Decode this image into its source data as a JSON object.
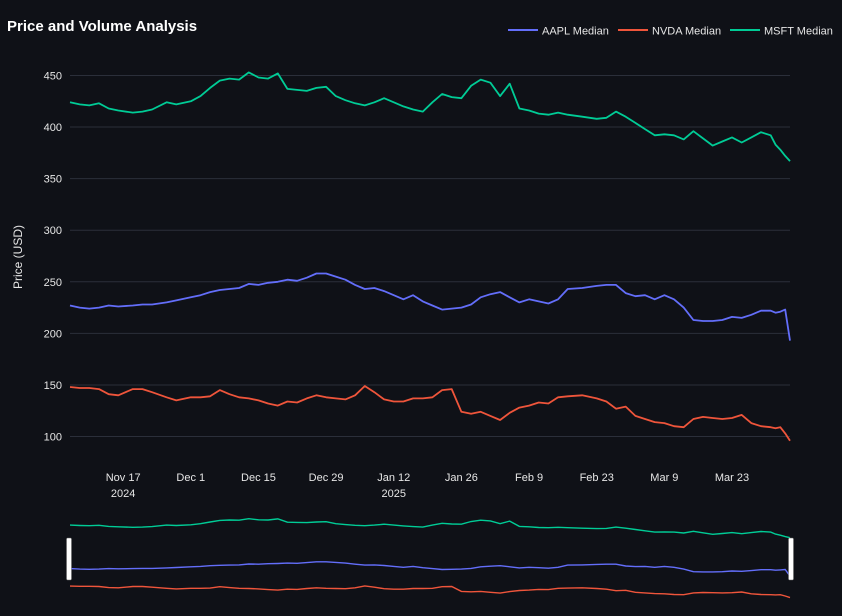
{
  "chart_data": {
    "type": "line",
    "title": "Price and Volume Analysis",
    "ylabel": "Price (USD)",
    "xlabel": "",
    "ylim": [
      85,
      465
    ],
    "yticks": [
      100,
      150,
      200,
      250,
      300,
      350,
      400,
      450
    ],
    "x_range": [
      "2024-11-06",
      "2025-04-04"
    ],
    "xticks": [
      {
        "date": "2024-11-17",
        "label": "Nov 17",
        "sublabel": "2024"
      },
      {
        "date": "2024-12-01",
        "label": "Dec 1",
        "sublabel": ""
      },
      {
        "date": "2024-12-15",
        "label": "Dec 15",
        "sublabel": ""
      },
      {
        "date": "2024-12-29",
        "label": "Dec 29",
        "sublabel": ""
      },
      {
        "date": "2025-01-12",
        "label": "Jan 12",
        "sublabel": "2025"
      },
      {
        "date": "2025-01-26",
        "label": "Jan 26",
        "sublabel": ""
      },
      {
        "date": "2025-02-09",
        "label": "Feb 9",
        "sublabel": ""
      },
      {
        "date": "2025-02-23",
        "label": "Feb 23",
        "sublabel": ""
      },
      {
        "date": "2025-03-09",
        "label": "Mar 9",
        "sublabel": ""
      },
      {
        "date": "2025-03-23",
        "label": "Mar 23",
        "sublabel": ""
      }
    ],
    "grid": true,
    "legend_position": "top-right",
    "range_slider": true,
    "series": [
      {
        "name": "AAPL Median",
        "color": "#636efa",
        "points": [
          [
            "2024-11-06",
            227
          ],
          [
            "2024-11-08",
            225
          ],
          [
            "2024-11-10",
            224
          ],
          [
            "2024-11-12",
            225
          ],
          [
            "2024-11-14",
            227
          ],
          [
            "2024-11-16",
            226
          ],
          [
            "2024-11-19",
            227
          ],
          [
            "2024-11-21",
            228
          ],
          [
            "2024-11-23",
            228
          ],
          [
            "2024-11-26",
            230
          ],
          [
            "2024-11-28",
            232
          ],
          [
            "2024-12-01",
            235
          ],
          [
            "2024-12-03",
            237
          ],
          [
            "2024-12-05",
            240
          ],
          [
            "2024-12-07",
            242
          ],
          [
            "2024-12-09",
            243
          ],
          [
            "2024-12-11",
            244
          ],
          [
            "2024-12-13",
            248
          ],
          [
            "2024-12-15",
            247
          ],
          [
            "2024-12-17",
            249
          ],
          [
            "2024-12-19",
            250
          ],
          [
            "2024-12-21",
            252
          ],
          [
            "2024-12-23",
            251
          ],
          [
            "2024-12-25",
            254
          ],
          [
            "2024-12-27",
            258
          ],
          [
            "2024-12-29",
            258
          ],
          [
            "2024-12-31",
            255
          ],
          [
            "2025-01-02",
            252
          ],
          [
            "2025-01-04",
            247
          ],
          [
            "2025-01-06",
            243
          ],
          [
            "2025-01-08",
            244
          ],
          [
            "2025-01-10",
            241
          ],
          [
            "2025-01-12",
            237
          ],
          [
            "2025-01-14",
            233
          ],
          [
            "2025-01-16",
            237
          ],
          [
            "2025-01-18",
            231
          ],
          [
            "2025-01-20",
            227
          ],
          [
            "2025-01-22",
            223
          ],
          [
            "2025-01-24",
            224
          ],
          [
            "2025-01-26",
            225
          ],
          [
            "2025-01-28",
            228
          ],
          [
            "2025-01-30",
            235
          ],
          [
            "2025-02-01",
            238
          ],
          [
            "2025-02-03",
            240
          ],
          [
            "2025-02-05",
            235
          ],
          [
            "2025-02-07",
            230
          ],
          [
            "2025-02-09",
            233
          ],
          [
            "2025-02-11",
            231
          ],
          [
            "2025-02-13",
            229
          ],
          [
            "2025-02-15",
            233
          ],
          [
            "2025-02-17",
            243
          ],
          [
            "2025-02-20",
            244
          ],
          [
            "2025-02-23",
            246
          ],
          [
            "2025-02-25",
            247
          ],
          [
            "2025-02-27",
            247
          ],
          [
            "2025-03-01",
            239
          ],
          [
            "2025-03-03",
            236
          ],
          [
            "2025-03-05",
            237
          ],
          [
            "2025-03-07",
            233
          ],
          [
            "2025-03-09",
            237
          ],
          [
            "2025-03-11",
            233
          ],
          [
            "2025-03-13",
            225
          ],
          [
            "2025-03-15",
            213
          ],
          [
            "2025-03-17",
            212
          ],
          [
            "2025-03-19",
            212
          ],
          [
            "2025-03-21",
            213
          ],
          [
            "2025-03-23",
            216
          ],
          [
            "2025-03-25",
            215
          ],
          [
            "2025-03-27",
            218
          ],
          [
            "2025-03-29",
            222
          ],
          [
            "2025-03-31",
            222
          ],
          [
            "2025-04-01",
            220
          ],
          [
            "2025-04-02",
            221
          ],
          [
            "2025-04-03",
            223
          ],
          [
            "2025-04-04",
            193
          ]
        ]
      },
      {
        "name": "NVDA Median",
        "color": "#ef553b",
        "points": [
          [
            "2024-11-06",
            148
          ],
          [
            "2024-11-08",
            147
          ],
          [
            "2024-11-10",
            147
          ],
          [
            "2024-11-12",
            146
          ],
          [
            "2024-11-14",
            141
          ],
          [
            "2024-11-16",
            140
          ],
          [
            "2024-11-19",
            146
          ],
          [
            "2024-11-21",
            146
          ],
          [
            "2024-11-23",
            143
          ],
          [
            "2024-11-26",
            138
          ],
          [
            "2024-11-28",
            135
          ],
          [
            "2024-12-01",
            138
          ],
          [
            "2024-12-03",
            138
          ],
          [
            "2024-12-05",
            139
          ],
          [
            "2024-12-07",
            145
          ],
          [
            "2024-12-09",
            141
          ],
          [
            "2024-12-11",
            138
          ],
          [
            "2024-12-13",
            137
          ],
          [
            "2024-12-15",
            135
          ],
          [
            "2024-12-17",
            132
          ],
          [
            "2024-12-19",
            130
          ],
          [
            "2024-12-21",
            134
          ],
          [
            "2024-12-23",
            133
          ],
          [
            "2024-12-25",
            137
          ],
          [
            "2024-12-27",
            140
          ],
          [
            "2024-12-29",
            138
          ],
          [
            "2024-12-31",
            137
          ],
          [
            "2025-01-02",
            136
          ],
          [
            "2025-01-04",
            140
          ],
          [
            "2025-01-06",
            149
          ],
          [
            "2025-01-08",
            143
          ],
          [
            "2025-01-10",
            136
          ],
          [
            "2025-01-12",
            134
          ],
          [
            "2025-01-14",
            134
          ],
          [
            "2025-01-16",
            137
          ],
          [
            "2025-01-18",
            137
          ],
          [
            "2025-01-20",
            138
          ],
          [
            "2025-01-22",
            145
          ],
          [
            "2025-01-24",
            146
          ],
          [
            "2025-01-26",
            124
          ],
          [
            "2025-01-28",
            122
          ],
          [
            "2025-01-30",
            124
          ],
          [
            "2025-02-01",
            120
          ],
          [
            "2025-02-03",
            116
          ],
          [
            "2025-02-05",
            123
          ],
          [
            "2025-02-07",
            128
          ],
          [
            "2025-02-09",
            130
          ],
          [
            "2025-02-11",
            133
          ],
          [
            "2025-02-13",
            132
          ],
          [
            "2025-02-15",
            138
          ],
          [
            "2025-02-17",
            139
          ],
          [
            "2025-02-20",
            140
          ],
          [
            "2025-02-23",
            137
          ],
          [
            "2025-02-25",
            134
          ],
          [
            "2025-02-27",
            127
          ],
          [
            "2025-03-01",
            129
          ],
          [
            "2025-03-03",
            120
          ],
          [
            "2025-03-05",
            117
          ],
          [
            "2025-03-07",
            114
          ],
          [
            "2025-03-09",
            113
          ],
          [
            "2025-03-11",
            110
          ],
          [
            "2025-03-13",
            109
          ],
          [
            "2025-03-15",
            117
          ],
          [
            "2025-03-17",
            119
          ],
          [
            "2025-03-19",
            118
          ],
          [
            "2025-03-21",
            117
          ],
          [
            "2025-03-23",
            118
          ],
          [
            "2025-03-25",
            121
          ],
          [
            "2025-03-27",
            113
          ],
          [
            "2025-03-29",
            110
          ],
          [
            "2025-03-31",
            109
          ],
          [
            "2025-04-01",
            108
          ],
          [
            "2025-04-02",
            109
          ],
          [
            "2025-04-03",
            103
          ],
          [
            "2025-04-04",
            96
          ]
        ]
      },
      {
        "name": "MSFT Median",
        "color": "#00cc96",
        "points": [
          [
            "2024-11-06",
            424
          ],
          [
            "2024-11-08",
            422
          ],
          [
            "2024-11-10",
            421
          ],
          [
            "2024-11-12",
            423
          ],
          [
            "2024-11-14",
            418
          ],
          [
            "2024-11-16",
            416
          ],
          [
            "2024-11-19",
            414
          ],
          [
            "2024-11-21",
            415
          ],
          [
            "2024-11-23",
            417
          ],
          [
            "2024-11-26",
            424
          ],
          [
            "2024-11-28",
            422
          ],
          [
            "2024-12-01",
            425
          ],
          [
            "2024-12-03",
            430
          ],
          [
            "2024-12-05",
            438
          ],
          [
            "2024-12-07",
            445
          ],
          [
            "2024-12-09",
            447
          ],
          [
            "2024-12-11",
            446
          ],
          [
            "2024-12-13",
            453
          ],
          [
            "2024-12-15",
            448
          ],
          [
            "2024-12-17",
            447
          ],
          [
            "2024-12-19",
            452
          ],
          [
            "2024-12-21",
            437
          ],
          [
            "2024-12-23",
            436
          ],
          [
            "2024-12-25",
            435
          ],
          [
            "2024-12-27",
            438
          ],
          [
            "2024-12-29",
            439
          ],
          [
            "2024-12-31",
            430
          ],
          [
            "2025-01-02",
            426
          ],
          [
            "2025-01-04",
            423
          ],
          [
            "2025-01-06",
            421
          ],
          [
            "2025-01-08",
            424
          ],
          [
            "2025-01-10",
            428
          ],
          [
            "2025-01-12",
            424
          ],
          [
            "2025-01-14",
            420
          ],
          [
            "2025-01-16",
            417
          ],
          [
            "2025-01-18",
            415
          ],
          [
            "2025-01-20",
            424
          ],
          [
            "2025-01-22",
            432
          ],
          [
            "2025-01-24",
            429
          ],
          [
            "2025-01-26",
            428
          ],
          [
            "2025-01-28",
            440
          ],
          [
            "2025-01-30",
            446
          ],
          [
            "2025-02-01",
            443
          ],
          [
            "2025-02-03",
            430
          ],
          [
            "2025-02-05",
            442
          ],
          [
            "2025-02-07",
            418
          ],
          [
            "2025-02-09",
            416
          ],
          [
            "2025-02-11",
            413
          ],
          [
            "2025-02-13",
            412
          ],
          [
            "2025-02-15",
            414
          ],
          [
            "2025-02-17",
            412
          ],
          [
            "2025-02-20",
            410
          ],
          [
            "2025-02-23",
            408
          ],
          [
            "2025-02-25",
            409
          ],
          [
            "2025-02-27",
            415
          ],
          [
            "2025-03-01",
            410
          ],
          [
            "2025-03-03",
            404
          ],
          [
            "2025-03-05",
            398
          ],
          [
            "2025-03-07",
            392
          ],
          [
            "2025-03-09",
            393
          ],
          [
            "2025-03-11",
            392
          ],
          [
            "2025-03-13",
            388
          ],
          [
            "2025-03-15",
            396
          ],
          [
            "2025-03-17",
            389
          ],
          [
            "2025-03-19",
            382
          ],
          [
            "2025-03-21",
            386
          ],
          [
            "2025-03-23",
            390
          ],
          [
            "2025-03-25",
            385
          ],
          [
            "2025-03-27",
            390
          ],
          [
            "2025-03-29",
            395
          ],
          [
            "2025-03-31",
            392
          ],
          [
            "2025-04-01",
            383
          ],
          [
            "2025-04-02",
            378
          ],
          [
            "2025-04-03",
            372
          ],
          [
            "2025-04-04",
            367
          ]
        ]
      }
    ]
  }
}
